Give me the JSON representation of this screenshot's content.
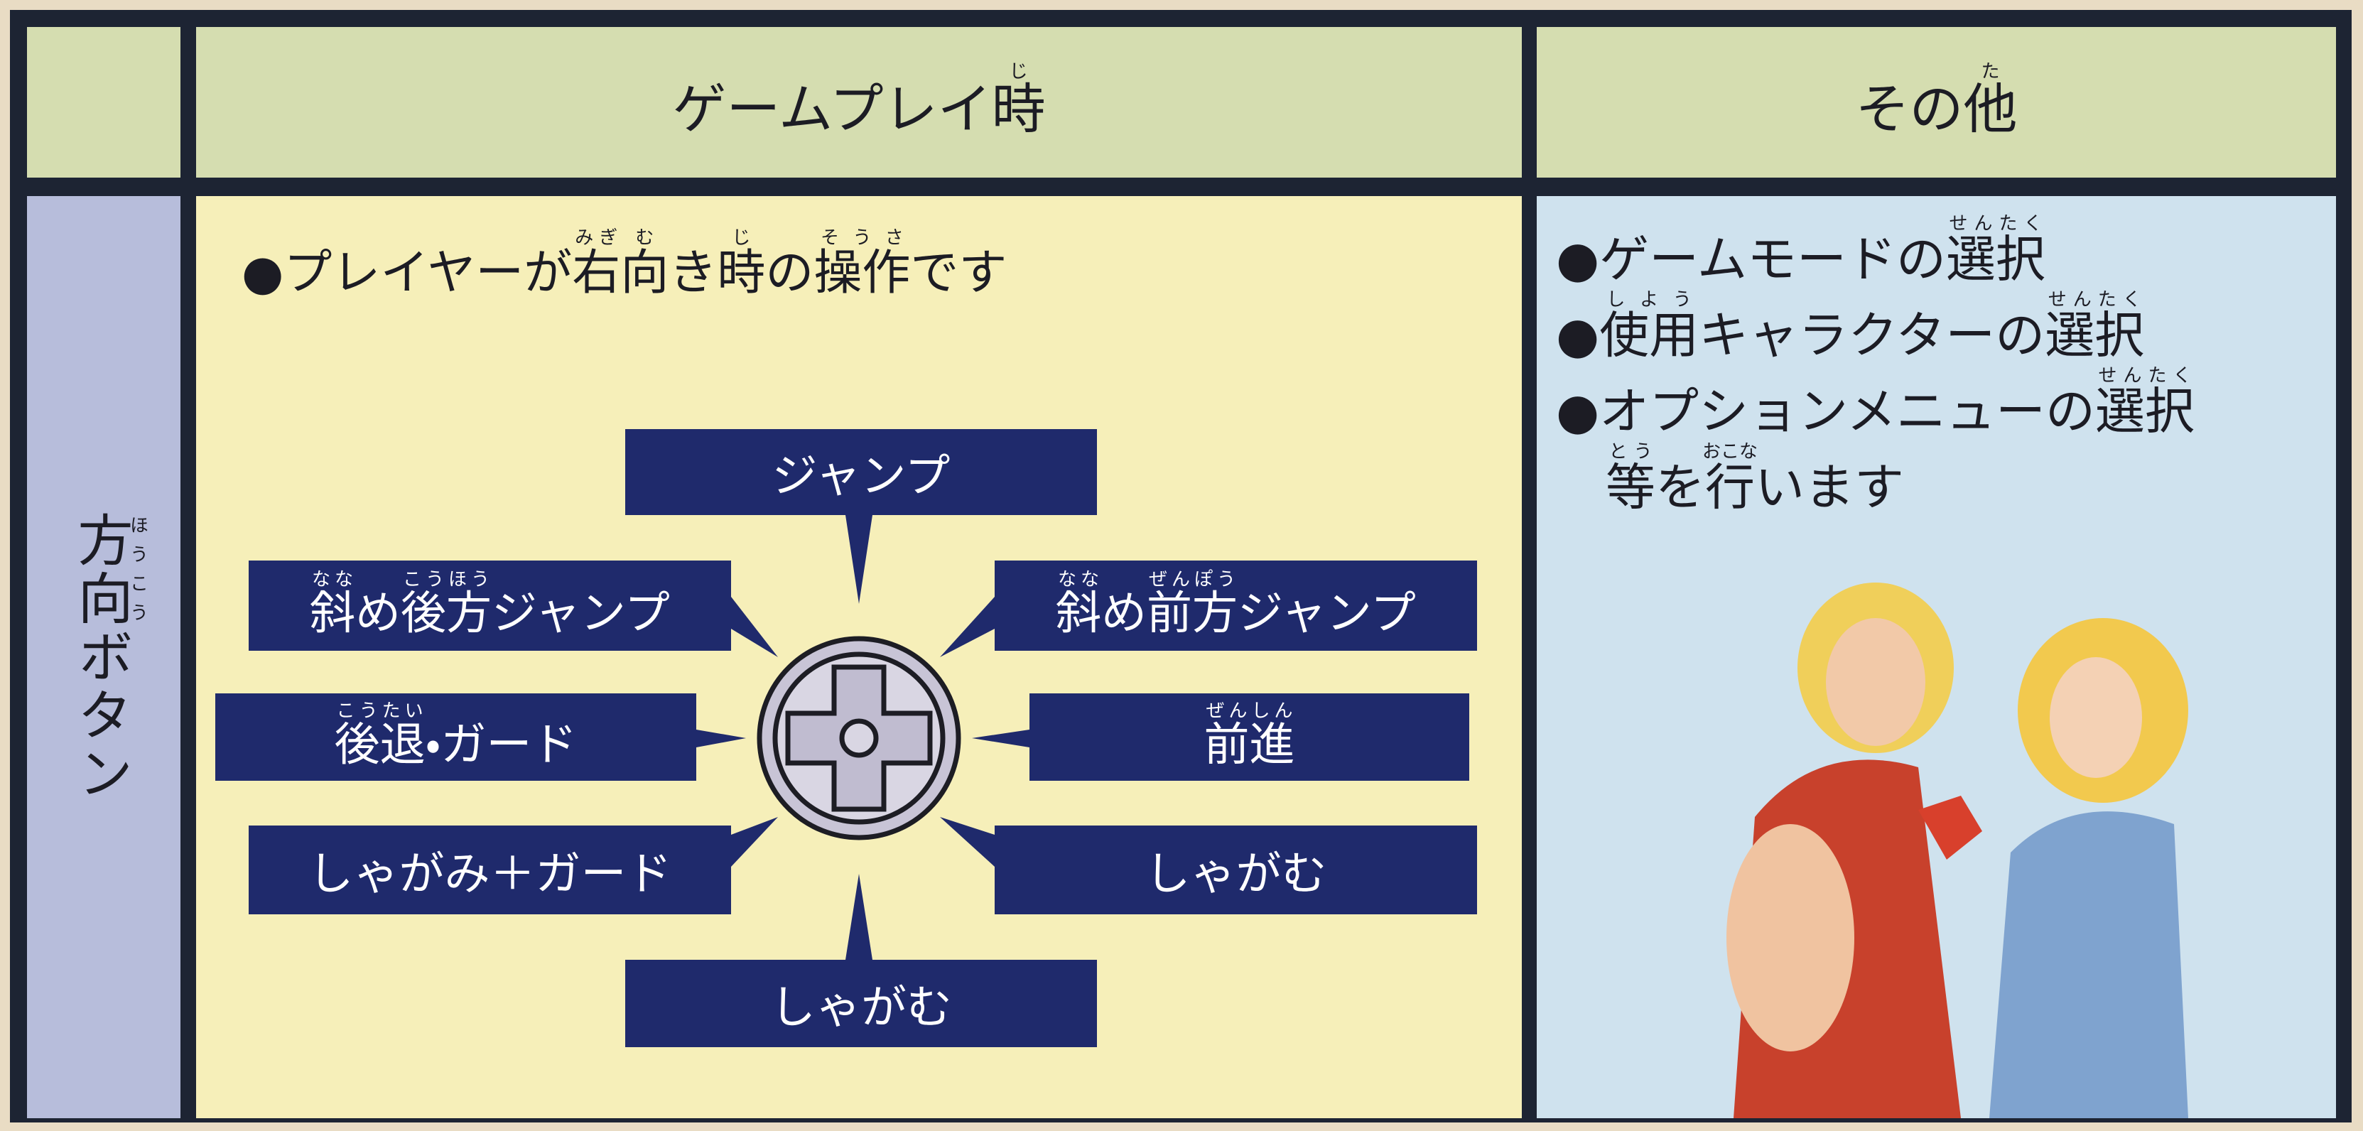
{
  "header": {
    "col2": [
      "ゲームプレイ",
      {
        "base": "時",
        "ruby": "じ"
      }
    ],
    "col3": [
      "その",
      {
        "base": "他",
        "ruby": "た"
      }
    ]
  },
  "row_label": [
    {
      "base": "方向",
      "ruby": "ほうこう"
    },
    "ボタン"
  ],
  "gameplay": {
    "note": [
      "●プレイヤーが",
      {
        "base": "右",
        "ruby": "みぎ"
      },
      {
        "base": "向",
        "ruby": "む"
      },
      "き",
      {
        "base": "時",
        "ruby": "じ"
      },
      "の",
      {
        "base": "操作",
        "ruby": "そうさ"
      },
      "です"
    ],
    "directions": {
      "up": [
        "ジャンプ"
      ],
      "up_back": [
        {
          "base": "斜",
          "ruby": "なな"
        },
        "め",
        {
          "base": "後方",
          "ruby": "こうほう"
        },
        "ジャンプ"
      ],
      "up_forward": [
        {
          "base": "斜",
          "ruby": "なな"
        },
        "め",
        {
          "base": "前方",
          "ruby": "ぜんぽう"
        },
        "ジャンプ"
      ],
      "back": [
        {
          "base": "後退",
          "ruby": "こうたい"
        },
        "・ガード"
      ],
      "forward": [
        {
          "base": "前進",
          "ruby": "ぜんしん"
        }
      ],
      "down_back": [
        "しゃがみ＋ガード"
      ],
      "down_forward": [
        "しゃがむ"
      ],
      "down": [
        "しゃがむ"
      ]
    }
  },
  "other": {
    "items": [
      [
        "●ゲームモードの",
        {
          "base": "選択",
          "ruby": "せんたく"
        }
      ],
      [
        "●",
        {
          "base": "使用",
          "ruby": "しよう"
        },
        "キャラクターの",
        {
          "base": "選択",
          "ruby": "せんたく"
        }
      ],
      [
        "●オプションメニューの",
        {
          "base": "選択",
          "ruby": "せんたく"
        }
      ],
      [
        {
          "base": "等",
          "ruby": "とう"
        },
        "を",
        {
          "base": "行",
          "ruby": "おこな"
        },
        "います"
      ]
    ]
  }
}
